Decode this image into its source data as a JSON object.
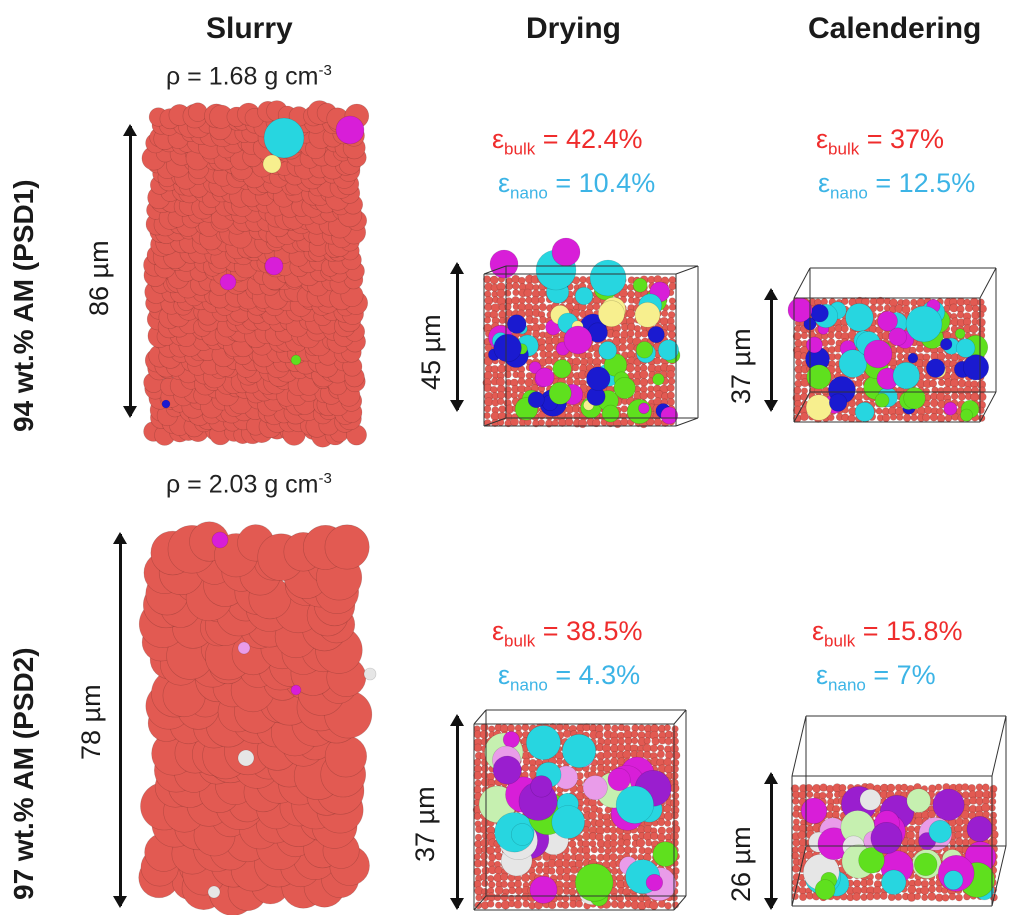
{
  "columns": {
    "slurry": "Slurry",
    "drying": "Drying",
    "calendering": "Calendering"
  },
  "rows": [
    {
      "label": "94 wt.% AM (PSD1)",
      "density": {
        "prefix": "ρ = 1.68 g cm",
        "exp": "-3"
      },
      "slurry_height": "86 µm",
      "drying": {
        "bulk_sym": "ε",
        "bulk_sub": "bulk",
        "bulk_val": " = 42.4%",
        "nano_sym": "ε",
        "nano_sub": "nano",
        "nano_val": " = 10.4%",
        "height": "45 µm"
      },
      "calendering": {
        "bulk_sym": "ε",
        "bulk_sub": "bulk",
        "bulk_val": " = 37%",
        "nano_sym": "ε",
        "nano_sub": "nano",
        "nano_val": " = 12.5%",
        "height": "37 µm"
      }
    },
    {
      "label": "97 wt.% AM (PSD2)",
      "density": {
        "prefix": "ρ = 2.03 g cm",
        "exp": "-3"
      },
      "slurry_height": "78 µm",
      "drying": {
        "bulk_sym": "ε",
        "bulk_sub": "bulk",
        "bulk_val": " = 38.5%",
        "nano_sym": "ε",
        "nano_sub": "nano",
        "nano_val": " = 4.3%",
        "height": "37 µm"
      },
      "calendering": {
        "bulk_sym": "ε",
        "bulk_sub": "bulk",
        "bulk_val": " = 15.8%",
        "nano_sym": "ε",
        "nano_sub": "nano",
        "nano_val": " = 7%",
        "height": "26 µm"
      }
    }
  ],
  "colors": {
    "bulk": "#ef2c2c",
    "nano": "#3cb4e6",
    "particle": "#e25a52",
    "magenta": "#d81ed8",
    "cyan": "#27d6e0",
    "green": "#5fe01e",
    "yellow": "#f7ef8e",
    "blue": "#1a1ad0",
    "pink": "#e99ce9",
    "white": "#e6e6e6",
    "lightgreen": "#c6f0b0",
    "purple": "#9a1ecf"
  }
}
